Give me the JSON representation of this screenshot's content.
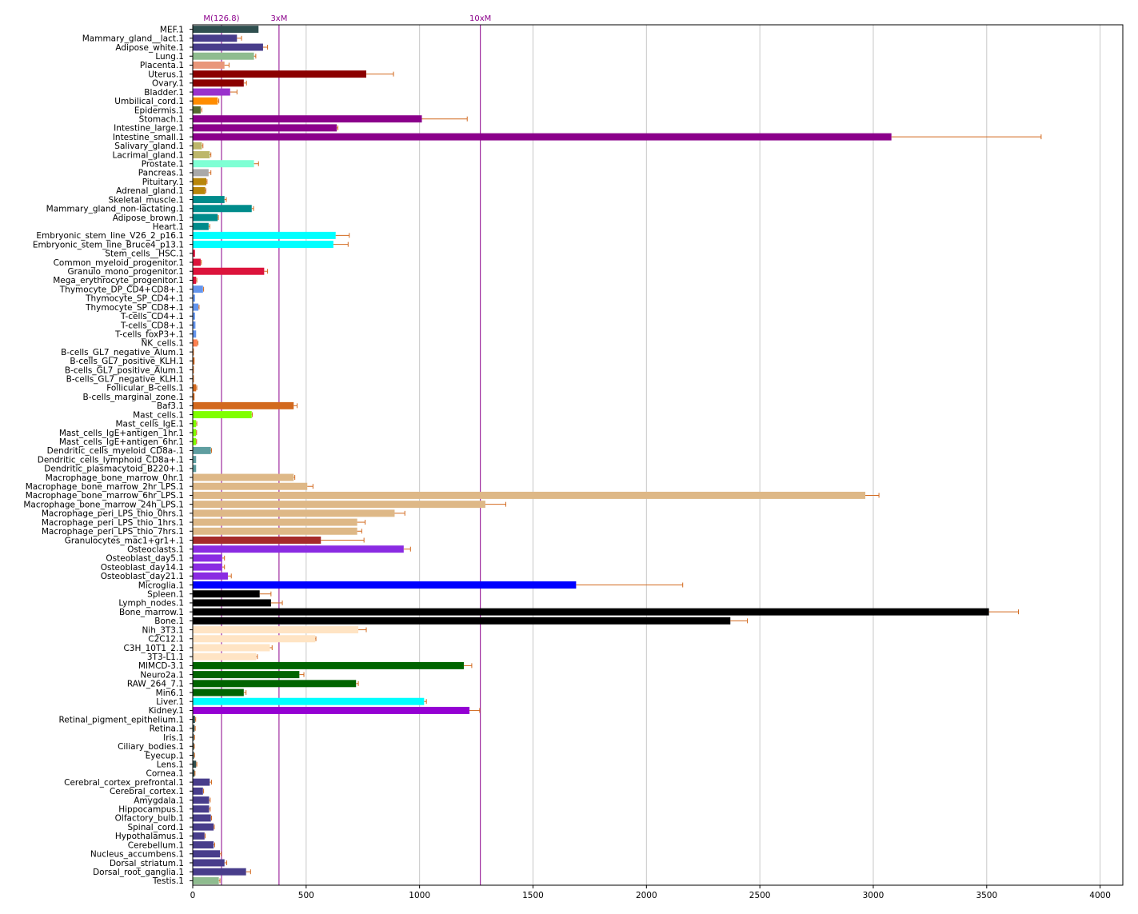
{
  "chart_data": {
    "type": "bar",
    "orientation": "horizontal",
    "grid": true,
    "xlim": [
      0,
      4100
    ],
    "x_ticks": [
      "0",
      "500",
      "1000",
      "1500",
      "2000",
      "2500",
      "3000",
      "3500",
      "4000"
    ],
    "x_tick_values": [
      0,
      500,
      1000,
      1500,
      2000,
      2500,
      3000,
      3500,
      4000
    ],
    "reference_lines": [
      {
        "label": "M(126.8)",
        "value": 126.8,
        "color": "#8b008b"
      },
      {
        "label": "3xM",
        "value": 380.4,
        "color": "#8b008b"
      },
      {
        "label": "10xM",
        "value": 1268,
        "color": "#8b008b"
      }
    ],
    "error_color": "#d2691e",
    "categories": [
      "MEF.1",
      "Mammary_gland__lact.1",
      "Adipose_white.1",
      "Lung.1",
      "Placenta.1",
      "Uterus.1",
      "Ovary.1",
      "Bladder.1",
      "Umbilical_cord.1",
      "Epidermis.1",
      "Stomach.1",
      "Intestine_large.1",
      "Intestine_small.1",
      "Salivary_gland.1",
      "Lacrimal_gland.1",
      "Prostate.1",
      "Pancreas.1",
      "Pituitary.1",
      "Adrenal_gland.1",
      "Skeletal_muscle.1",
      "Mammary_gland_non-lactating.1",
      "Adipose_brown.1",
      "Heart.1",
      "Embryonic_stem_line_V26_2_p16.1",
      "Embryonic_stem_line_Bruce4_p13.1",
      "Stem_cells__HSC.1",
      "Common_myeloid_progenitor.1",
      "Granulo_mono_progenitor.1",
      "Mega_erythrocyte_progenitor.1",
      "Thymocyte_DP_CD4+CD8+.1",
      "Thymocyte_SP_CD4+.1",
      "Thymocyte_SP_CD8+.1",
      "T-cells_CD4+.1",
      "T-cells_CD8+.1",
      "T-cells_foxP3+.1",
      "NK_cells.1",
      "B-cells_GL7_negative_Alum.1",
      "B-cells_GL7_positive_KLH.1",
      "B-cells_GL7_positive_Alum.1",
      "B-cells_GL7_negative_KLH.1",
      "Follicular_B-cells.1",
      "B-cells_marginal_zone.1",
      "Baf3.1",
      "Mast_cells.1",
      "Mast_cells_IgE.1",
      "Mast_cells_IgE+antigen_1hr.1",
      "Mast_cells_IgE+antigen_6hr.1",
      "Dendritic_cells_myeloid_CD8a-.1",
      "Dendritic_cells_lymphoid_CD8a+.1",
      "Dendritic_plasmacytoid_B220+.1",
      "Macrophage_bone_marrow_0hr.1",
      "Macrophage_bone_marrow_2hr_LPS.1",
      "Macrophage_bone_marrow_6hr_LPS.1",
      "Macrophage_bone_marrow_24h_LPS.1",
      "Macrophage_peri_LPS_thio_0hrs.1",
      "Macrophage_peri_LPS_thio_1hrs.1",
      "Macrophage_peri_LPS_thio_7hrs.1",
      "Granulocytes_mac1+gr1+.1",
      "Osteoclasts.1",
      "Osteoblast_day5.1",
      "Osteoblast_day14.1",
      "Osteoblast_day21.1",
      "Microglia.1",
      "Spleen.1",
      "Lymph_nodes.1",
      "Bone_marrow.1",
      "Bone.1",
      "Nih_3T3.1",
      "C2C12.1",
      "C3H_10T1_2.1",
      "3T3-L1.1",
      "MIMCD-3.1",
      "Neuro2a.1",
      "RAW_264_7.1",
      "Min6.1",
      "Liver.1",
      "Kidney.1",
      "Retinal_pigment_epithelium.1",
      "Retina.1",
      "Iris.1",
      "Ciliary_bodies.1",
      "Eyecup.1",
      "Lens.1",
      "Cornea.1",
      "Cerebral_cortex_prefrontal.1",
      "Cerebral_cortex.1",
      "Amygdala.1",
      "Hippocampus.1",
      "Olfactory_bulb.1",
      "Spinal_cord.1",
      "Hypothalamus.1",
      "Cerebellum.1",
      "Nucleus_accumbens.1",
      "Dorsal_striatum.1",
      "Dorsal_root_ganglia.1",
      "Testis.1"
    ],
    "values": [
      290,
      195,
      310,
      270,
      140,
      765,
      225,
      165,
      110,
      35,
      1010,
      635,
      3080,
      40,
      75,
      270,
      70,
      60,
      55,
      140,
      260,
      110,
      70,
      630,
      620,
      10,
      35,
      315,
      15,
      45,
      10,
      25,
      10,
      12,
      15,
      20,
      5,
      8,
      5,
      5,
      15,
      8,
      445,
      260,
      15,
      15,
      15,
      80,
      15,
      15,
      445,
      505,
      2965,
      1290,
      890,
      725,
      725,
      565,
      930,
      130,
      130,
      155,
      1690,
      295,
      345,
      3510,
      2370,
      730,
      540,
      340,
      280,
      1195,
      470,
      720,
      225,
      1020,
      1220,
      10,
      8,
      5,
      5,
      5,
      15,
      8,
      75,
      45,
      72,
      72,
      80,
      92,
      52,
      92,
      120,
      140,
      235,
      115
    ],
    "errors": [
      0,
      20,
      20,
      8,
      20,
      120,
      12,
      30,
      5,
      5,
      200,
      5,
      660,
      5,
      5,
      20,
      10,
      3,
      3,
      8,
      8,
      3,
      5,
      60,
      65,
      0,
      3,
      15,
      3,
      3,
      0,
      3,
      0,
      0,
      0,
      3,
      0,
      0,
      0,
      0,
      3,
      0,
      15,
      3,
      3,
      2,
      2,
      3,
      0,
      0,
      5,
      25,
      60,
      90,
      45,
      35,
      20,
      190,
      30,
      10,
      10,
      15,
      470,
      50,
      50,
      130,
      75,
      35,
      3,
      10,
      5,
      35,
      20,
      10,
      10,
      10,
      45,
      3,
      3,
      3,
      2,
      3,
      3,
      2,
      8,
      3,
      5,
      5,
      3,
      3,
      3,
      5,
      5,
      10,
      20,
      5
    ],
    "colors": [
      "#2f4f4f",
      "#483d8b",
      "#483d8b",
      "#8fbc8f",
      "#e9967a",
      "#8b0000",
      "#8b0000",
      "#9932cc",
      "#ff8c00",
      "#556b2f",
      "#8b008b",
      "#8b008b",
      "#8b008b",
      "#bdb76b",
      "#bdb76b",
      "#7fffd4",
      "#a9a9a9",
      "#b8860b",
      "#b8860b",
      "#008b8b",
      "#008b8b",
      "#008b8b",
      "#008b8b",
      "#00ffff",
      "#00ffff",
      "#dc143c",
      "#dc143c",
      "#dc143c",
      "#dc143c",
      "#6495ed",
      "#6495ed",
      "#6495ed",
      "#6495ed",
      "#6495ed",
      "#6495ed",
      "#ff7f50",
      "#d2691e",
      "#d2691e",
      "#d2691e",
      "#d2691e",
      "#d2691e",
      "#d2691e",
      "#d2691e",
      "#7fff00",
      "#7fff00",
      "#7fff00",
      "#7fff00",
      "#5f9ea0",
      "#5f9ea0",
      "#5f9ea0",
      "#deb887",
      "#deb887",
      "#deb887",
      "#deb887",
      "#deb887",
      "#deb887",
      "#deb887",
      "#a52a2a",
      "#8a2be2",
      "#8a2be2",
      "#8a2be2",
      "#8a2be2",
      "#0000ff",
      "#000000",
      "#000000",
      "#000000",
      "#000000",
      "#ffe4c4",
      "#ffe4c4",
      "#ffe4c4",
      "#ffe4c4",
      "#006400",
      "#006400",
      "#006400",
      "#006400",
      "#00ffff",
      "#9400d3",
      "#2f4f4f",
      "#2f4f4f",
      "#2f4f4f",
      "#2f4f4f",
      "#2f4f4f",
      "#2f4f4f",
      "#2f4f4f",
      "#483d8b",
      "#483d8b",
      "#483d8b",
      "#483d8b",
      "#483d8b",
      "#483d8b",
      "#483d8b",
      "#483d8b",
      "#483d8b",
      "#483d8b",
      "#483d8b",
      "#8fbc8f"
    ]
  }
}
